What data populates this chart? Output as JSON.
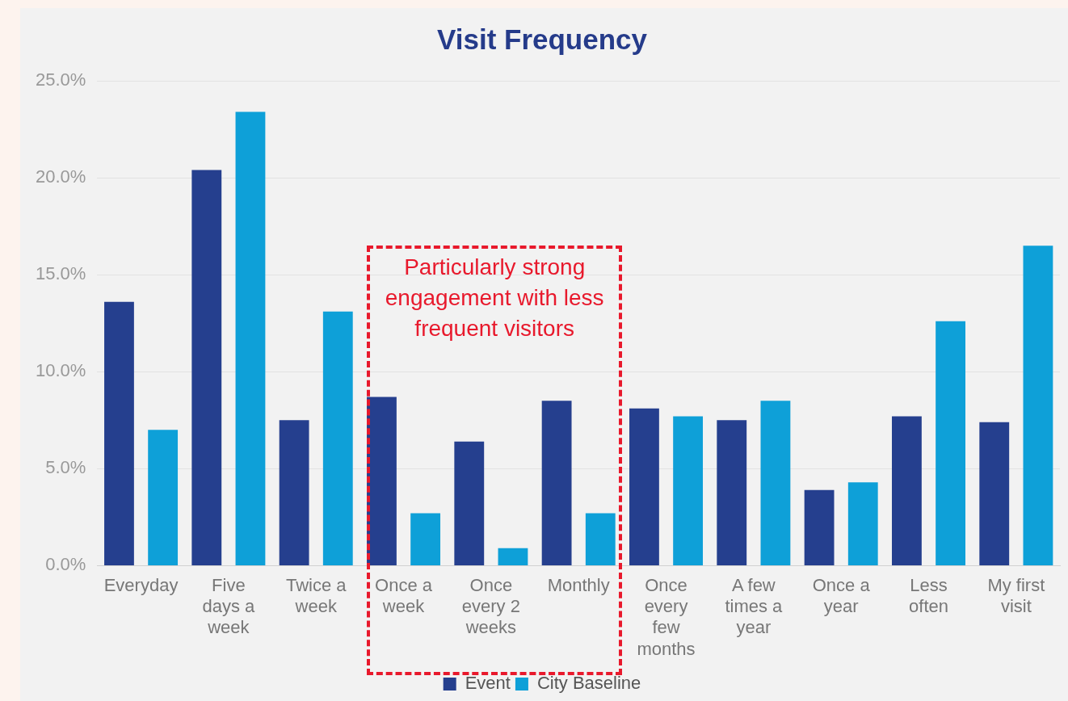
{
  "chart_data": {
    "type": "bar",
    "title": "Visit Frequency",
    "categories": [
      "Everyday",
      "Five days a week",
      "Twice a week",
      "Once a week",
      "Once every 2 weeks",
      "Monthly",
      "Once every few months",
      "A few times a year",
      "Once a year",
      "Less often",
      "My first visit"
    ],
    "series": [
      {
        "name": "Event",
        "color": "#253f8e",
        "values": [
          13.6,
          20.4,
          7.5,
          8.7,
          6.4,
          8.5,
          8.1,
          7.5,
          3.9,
          7.7,
          7.4
        ]
      },
      {
        "name": "City Baseline",
        "color": "#0ea0d8",
        "values": [
          7.0,
          23.4,
          13.1,
          2.7,
          0.9,
          2.7,
          7.7,
          8.5,
          4.3,
          12.6,
          16.5
        ]
      }
    ],
    "ylim": [
      0,
      25
    ],
    "yticks": [
      {
        "value": 0,
        "label": "0.0%"
      },
      {
        "value": 5,
        "label": "5.0%"
      },
      {
        "value": 10,
        "label": "10.0%"
      },
      {
        "value": 15,
        "label": "15.0%"
      },
      {
        "value": 20,
        "label": "20.0%"
      },
      {
        "value": 25,
        "label": "25.0%"
      }
    ],
    "grid": "y",
    "legend": "bottom",
    "annotations": [
      "Particularly strong engagement with less frequent visitors"
    ]
  }
}
